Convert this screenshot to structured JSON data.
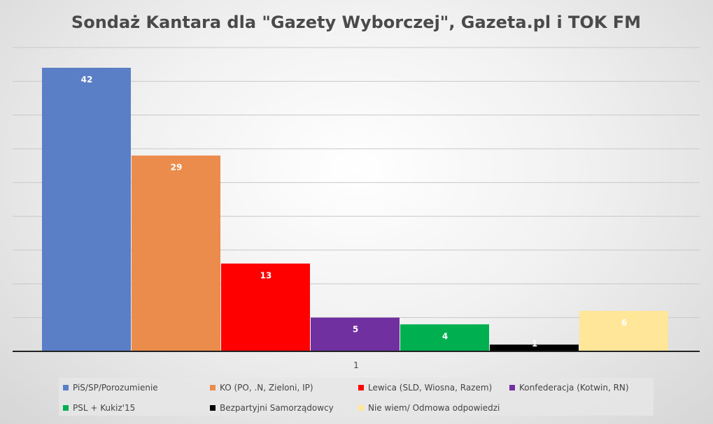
{
  "chart_data": {
    "type": "bar",
    "title": "Sondaż Kantara dla \"Gazety Wyborczej\", Gazeta.pl i TOK FM",
    "categories": [
      "1"
    ],
    "ylim": [
      0,
      45
    ],
    "grid": true,
    "legend_position": "bottom",
    "series": [
      {
        "name": "PiS/SP/Porozumienie",
        "values": [
          42
        ],
        "color": "#5b7fc7"
      },
      {
        "name": "KO (PO, .N, Zieloni, IP)",
        "values": [
          29
        ],
        "color": "#ec8c4c"
      },
      {
        "name": "Lewica (SLD, Wiosna, Razem)",
        "values": [
          13
        ],
        "color": "#ff0000"
      },
      {
        "name": "Konfederacja (Kotwin, RN)",
        "values": [
          5
        ],
        "color": "#7030a0"
      },
      {
        "name": "PSL + Kukiz'15",
        "values": [
          4
        ],
        "color": "#00b050"
      },
      {
        "name": "Bezpartyjni Samorządowcy",
        "values": [
          1
        ],
        "color": "#000000"
      },
      {
        "name": "Nie wiem/ Odmowa odpowiedzi",
        "values": [
          6
        ],
        "color": "#ffe699"
      }
    ]
  }
}
